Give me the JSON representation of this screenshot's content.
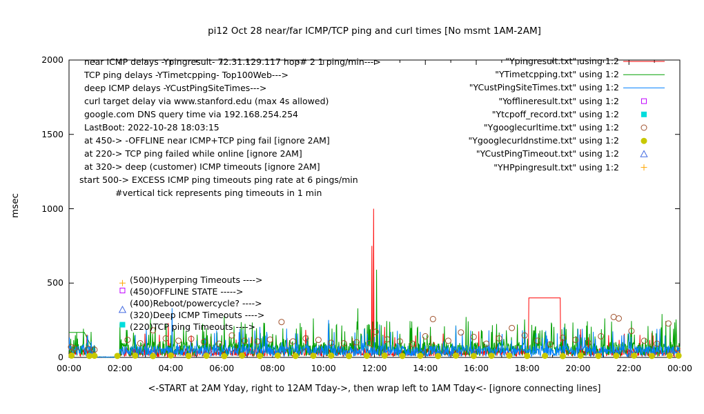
{
  "chart_data": {
    "type": "line+scatter",
    "title": "pi12 Oct 28  near/far ICMP/TCP ping and curl times [No msmt 1AM-2AM]",
    "xlabel": "<-START at 2AM Yday, right to 12AM Tday->, then wrap left to 1AM Tday<- [ignore connecting lines]",
    "ylabel": "msec",
    "x_unit": "hour of day",
    "xlim_hours": [
      0,
      24
    ],
    "ylim": [
      0,
      2000
    ],
    "yticks": [
      0,
      500,
      1000,
      1500,
      2000
    ],
    "xticks": [
      "00:00",
      "02:00",
      "04:00",
      "06:00",
      "08:00",
      "10:00",
      "12:00",
      "14:00",
      "16:00",
      "18:00",
      "20:00",
      "22:00",
      "00:00"
    ],
    "grid": false,
    "legend_position": "top-right-inside",
    "values_approximate": true,
    "notes": [
      {
        "x": 122,
        "y": 82,
        "text": "near ICMP delays -Ypingresult- 72.31.129.117 hop# 2 1 ping/min--->"
      },
      {
        "x": 122,
        "y": 101,
        "text": "TCP ping delays -YTimetcpping- Top100Web--->"
      },
      {
        "x": 122,
        "y": 120,
        "text": "deep ICMP delays -YCustPingSiteTimes--->"
      },
      {
        "x": 122,
        "y": 139,
        "text": "curl target delay via www.stanford.edu (max 4s allowed)"
      },
      {
        "x": 122,
        "y": 158,
        "text": "google.com DNS query time via 192.168.254.254"
      },
      {
        "x": 122,
        "y": 177,
        "text": "LastBoot: 2022-10-28 18:03:15"
      },
      {
        "x": 122,
        "y": 196,
        "text": "at 450-> -OFFLINE near ICMP+TCP ping fail [ignore 2AM]"
      },
      {
        "x": 122,
        "y": 215,
        "text": "at 220-> TCP ping failed while online [ignore 2AM]"
      },
      {
        "x": 122,
        "y": 234,
        "text": "at 320-> deep (customer) ICMP timeouts [ignore 2AM]"
      },
      {
        "x": 115,
        "y": 253,
        "text": "start 500-> EXCESS ICMP ping timeouts ping rate at 6 pings/min"
      },
      {
        "x": 167,
        "y": 272,
        "text": "#vertical tick represents ping timeouts in 1 min"
      }
    ],
    "marker_labels": [
      {
        "x": 188,
        "y": 398,
        "value": 500,
        "text": "(500)Hyperping Timeouts ---->"
      },
      {
        "x": 188,
        "y": 415,
        "value": 450,
        "text": "(450)OFFLINE STATE ----->"
      },
      {
        "x": 188,
        "y": 432,
        "value": 400,
        "text": "(400)Reboot/powercycle? ---->"
      },
      {
        "x": 188,
        "y": 449,
        "value": 320,
        "text": "(320)Deep ICMP Timeouts ---->"
      },
      {
        "x": 188,
        "y": 466,
        "value": 220,
        "text": "(220)TCP ping Timeouts ---->"
      }
    ],
    "legend": [
      {
        "label": "\"Ypingresult.txt\" using 1:2",
        "sample": "line",
        "color": "#ff0000"
      },
      {
        "label": "\"YTimetcpping.txt\" using 1:2",
        "sample": "line",
        "color": "#00a000"
      },
      {
        "label": "\"YCustPingSiteTimes.txt\" using 1:2",
        "sample": "line",
        "color": "#0080ff"
      },
      {
        "label": "\"Yofflineresult.txt\" using 1:2",
        "sample": "open-square",
        "color": "#c000ff"
      },
      {
        "label": "\"Ytcpoff_record.txt\" using 1:2",
        "sample": "filled-square",
        "color": "#00dddd"
      },
      {
        "label": "\"Ygooglecurltime.txt\" using 1:2",
        "sample": "open-circle",
        "color": "#a0522d"
      },
      {
        "label": "\"Ygooglecurldnstime.txt\" using 1:2",
        "sample": "filled-circle",
        "color": "#c8c800"
      },
      {
        "label": "\"YCustPingTimeout.txt\" using 1:2",
        "sample": "open-triangle",
        "color": "#4169e1"
      },
      {
        "label": "\"YHPpingresult.txt\" using 1:2",
        "sample": "plus",
        "color": "#ffa500"
      }
    ],
    "series": [
      {
        "file": "Ypingresult.txt",
        "name": "near ICMP ping delay (72.31.129.117 hop#2, 1 ping/min)",
        "style": "line",
        "color": "#ff0000",
        "noise": {
          "seed": 11,
          "min": 6,
          "max": 62,
          "spike_chance": 0.03,
          "spike_min": 70,
          "spike_max": 165
        },
        "spikes": [
          [
            3.9,
            230
          ],
          [
            6.7,
            150
          ],
          [
            9.3,
            185
          ],
          [
            11.9,
            750
          ],
          [
            11.97,
            1000
          ],
          [
            12.4,
            205
          ],
          [
            14.7,
            160
          ],
          [
            16.1,
            175
          ],
          [
            17.62,
            200
          ],
          [
            20.1,
            190
          ],
          [
            21.2,
            150
          ],
          [
            22.9,
            165
          ]
        ],
        "plateau": {
          "from": 18.07,
          "to": 19.3,
          "value": 400
        }
      },
      {
        "file": "YTimetcpping.txt",
        "name": "TCP ping delay (Top100Web)",
        "style": "line",
        "color": "#00a000",
        "noise": {
          "seed": 22,
          "min": 8,
          "max": 105,
          "spike_chance": 0.09,
          "spike_min": 110,
          "spike_max": 245
        },
        "spikes": [
          [
            2.25,
            185
          ],
          [
            3.2,
            255
          ],
          [
            4.5,
            205
          ],
          [
            5.3,
            175
          ],
          [
            6.1,
            282
          ],
          [
            7.2,
            235
          ],
          [
            8.4,
            195
          ],
          [
            9.6,
            262
          ],
          [
            10.5,
            215
          ],
          [
            11.35,
            330
          ],
          [
            12.08,
            590
          ],
          [
            12.6,
            240
          ],
          [
            13.4,
            245
          ],
          [
            14.2,
            205
          ],
          [
            15.6,
            272
          ],
          [
            16.8,
            225
          ],
          [
            17.9,
            255
          ],
          [
            19.05,
            205
          ],
          [
            19.8,
            235
          ],
          [
            21.05,
            262
          ],
          [
            22.1,
            245
          ],
          [
            23.3,
            292
          ],
          [
            23.85,
            255
          ]
        ],
        "extra_segments": [
          [
            [
              0,
              168
            ],
            [
              0.6,
              168
            ],
            [
              1.02,
              26
            ]
          ]
        ]
      },
      {
        "file": "YCustPingSiteTimes.txt",
        "name": "deep (customer) ICMP ping delay",
        "style": "line",
        "color": "#0080ff",
        "noise": {
          "seed": 33,
          "min": 6,
          "max": 80,
          "spike_chance": 0.055,
          "spike_min": 85,
          "spike_max": 195
        },
        "spikes": [
          [
            2.6,
            152
          ],
          [
            4.05,
            332
          ],
          [
            5.8,
            182
          ],
          [
            7.5,
            205
          ],
          [
            8.9,
            162
          ],
          [
            10.2,
            252
          ],
          [
            11.6,
            192
          ],
          [
            12.2,
            222
          ],
          [
            13.8,
            172
          ],
          [
            15.2,
            212
          ],
          [
            16.5,
            182
          ],
          [
            18.35,
            162
          ],
          [
            19.45,
            202
          ],
          [
            20.6,
            172
          ],
          [
            21.8,
            152
          ],
          [
            23.1,
            192
          ]
        ]
      },
      {
        "file": "Yofflineresult.txt",
        "name": "OFFLINE state (near ICMP+TCP ping fail), plotted at 450",
        "style": "open-square",
        "color": "#c000ff",
        "points": [
          [
            2.1,
            450
          ]
        ]
      },
      {
        "file": "Ytcpoff_record.txt",
        "name": "TCP ping failed while online, plotted at 220",
        "style": "filled-square",
        "color": "#00dddd",
        "points": [
          [
            2.1,
            220
          ]
        ]
      },
      {
        "file": "Ygooglecurltime.txt",
        "name": "curl target delay via www.stanford.edu (max 4s allowed)",
        "style": "open-circle",
        "color": "#a0522d",
        "points": [
          [
            0.08,
            70
          ],
          [
            0.2,
            62
          ],
          [
            0.75,
            58
          ],
          [
            1.0,
            52
          ],
          [
            2.3,
            118
          ],
          [
            2.8,
            95
          ],
          [
            3.3,
            182
          ],
          [
            3.8,
            128
          ],
          [
            4.3,
            112
          ],
          [
            4.8,
            125
          ],
          [
            5.3,
            105
          ],
          [
            5.9,
            92
          ],
          [
            6.4,
            148
          ],
          [
            6.9,
            112
          ],
          [
            7.4,
            108
          ],
          [
            7.9,
            120
          ],
          [
            8.35,
            238
          ],
          [
            8.8,
            108
          ],
          [
            9.3,
            128
          ],
          [
            9.8,
            118
          ],
          [
            10.3,
            98
          ],
          [
            10.8,
            95
          ],
          [
            11.3,
            102
          ],
          [
            11.8,
            96
          ],
          [
            12.05,
            172
          ],
          [
            12.5,
            122
          ],
          [
            13.0,
            108
          ],
          [
            13.5,
            92
          ],
          [
            14.0,
            142
          ],
          [
            14.3,
            258
          ],
          [
            14.9,
            112
          ],
          [
            15.4,
            168
          ],
          [
            15.9,
            138
          ],
          [
            16.4,
            92
          ],
          [
            16.9,
            128
          ],
          [
            17.4,
            198
          ],
          [
            17.9,
            148
          ],
          [
            18.4,
            112
          ],
          [
            18.9,
            88
          ],
          [
            19.4,
            132
          ],
          [
            19.9,
            118
          ],
          [
            20.4,
            98
          ],
          [
            20.9,
            142
          ],
          [
            21.4,
            272
          ],
          [
            21.6,
            262
          ],
          [
            22.1,
            178
          ],
          [
            22.6,
            112
          ],
          [
            23.1,
            92
          ],
          [
            23.55,
            228
          ],
          [
            23.9,
            58
          ]
        ]
      },
      {
        "file": "Ygooglecurldnstime.txt",
        "name": "google.com DNS query time via 192.168.254.254",
        "style": "filled-circle",
        "color": "#c8c800",
        "points": [
          [
            0.1,
            12
          ],
          [
            0.8,
            10
          ],
          [
            1.0,
            11
          ],
          [
            1.9,
            10
          ],
          [
            2.6,
            12
          ],
          [
            3.3,
            9
          ],
          [
            4.0,
            13
          ],
          [
            4.7,
            10
          ],
          [
            5.4,
            11
          ],
          [
            6.1,
            9
          ],
          [
            6.8,
            12
          ],
          [
            7.5,
            10
          ],
          [
            8.2,
            13
          ],
          [
            8.9,
            10
          ],
          [
            9.6,
            11
          ],
          [
            10.3,
            12
          ],
          [
            11.0,
            9
          ],
          [
            11.7,
            11
          ],
          [
            12.4,
            12
          ],
          [
            13.1,
            10
          ],
          [
            13.8,
            11
          ],
          [
            14.5,
            9
          ],
          [
            15.2,
            12
          ],
          [
            15.9,
            10
          ],
          [
            16.6,
            11
          ],
          [
            17.3,
            12
          ],
          [
            18.0,
            10
          ],
          [
            18.7,
            11
          ],
          [
            19.4,
            9
          ],
          [
            20.1,
            12
          ],
          [
            20.8,
            10
          ],
          [
            21.5,
            11
          ],
          [
            22.2,
            12
          ],
          [
            22.9,
            10
          ],
          [
            23.6,
            11
          ],
          [
            23.95,
            12
          ]
        ]
      },
      {
        "file": "YCustPingTimeout.txt",
        "name": "deep ICMP timeouts, plotted at 320",
        "style": "open-triangle",
        "color": "#4169e1",
        "points": [
          [
            2.1,
            320
          ]
        ]
      },
      {
        "file": "YHPpingresult.txt",
        "name": "EXCESS ICMP (hyperping) timeouts, plotted at 500",
        "style": "plus",
        "color": "#ffa500",
        "points": [
          [
            2.1,
            500
          ]
        ]
      }
    ]
  }
}
